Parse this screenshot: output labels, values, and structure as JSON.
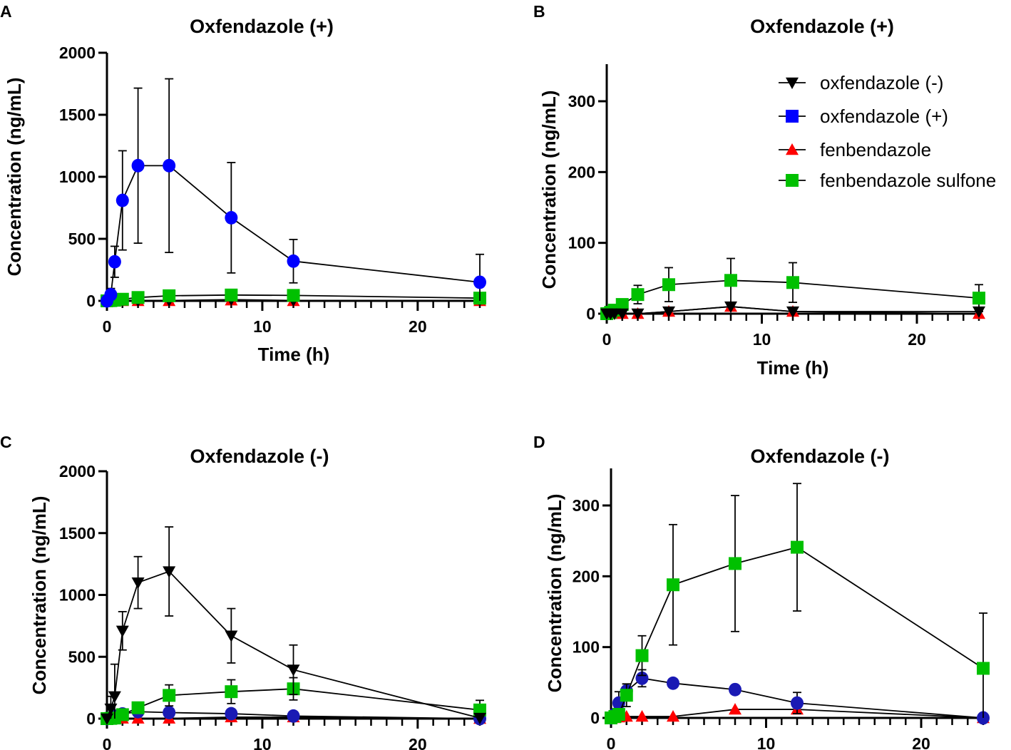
{
  "legend": [
    {
      "name": "oxfendazole (-)",
      "marker": "triangle-down",
      "color": "#000000"
    },
    {
      "name": "oxfendazole (+)",
      "marker": "square",
      "color": "#0000ff"
    },
    {
      "name": "fenbendazole",
      "marker": "triangle-up",
      "color": "#ff0000"
    },
    {
      "name": "fenbendazole sulfone",
      "marker": "square",
      "color": "#00c000"
    }
  ],
  "chart_data": [
    {
      "panel": "A",
      "type": "line",
      "title": "Oxfendazole (+)",
      "xlabel": "Time (h)",
      "ylabel": "Concentration (ng/mL)",
      "xlim": [
        0,
        24
      ],
      "ylim": [
        0,
        2000
      ],
      "xticks": [
        0,
        10,
        20
      ],
      "yticks": [
        0,
        500,
        1000,
        1500,
        2000
      ],
      "grid": false,
      "x": [
        0,
        0.25,
        0.5,
        1,
        2,
        4,
        8,
        12,
        24
      ],
      "series": [
        {
          "name": "fenbendazole",
          "marker": "triangle-up",
          "color": "#ff0000",
          "values": [
            0,
            0,
            0,
            0,
            0,
            0,
            5,
            0,
            0
          ],
          "sd": [
            0,
            0,
            0,
            0,
            0,
            0,
            0,
            0,
            0
          ]
        },
        {
          "name": "oxfendazole (-)",
          "marker": "triangle-down",
          "color": "#000000",
          "values": [
            0,
            0,
            0,
            0,
            0,
            3,
            10,
            3,
            3
          ],
          "sd": [
            0,
            0,
            0,
            0,
            0,
            0,
            0,
            0,
            0
          ]
        },
        {
          "name": "fenbendazole sulfone",
          "marker": "square",
          "color": "#00c000",
          "values": [
            0,
            2,
            5,
            13,
            27,
            41,
            47,
            44,
            22
          ],
          "sd": [
            0,
            0,
            0,
            0,
            0,
            0,
            0,
            0,
            0
          ]
        },
        {
          "name": "oxfendazole (+)",
          "marker": "circle",
          "color": "#0000ff",
          "values": [
            0,
            50,
            315,
            810,
            1090,
            1090,
            670,
            320,
            150
          ],
          "sd": [
            0,
            50,
            125,
            400,
            625,
            700,
            445,
            175,
            225
          ]
        }
      ]
    },
    {
      "panel": "B",
      "type": "line",
      "title": "Oxfendazole (+)",
      "xlabel": "Time (h)",
      "ylabel": "Concentration (ng/mL)",
      "xlim": [
        0,
        24
      ],
      "ylim": [
        0,
        350
      ],
      "xticks": [
        0,
        10,
        20
      ],
      "yticks": [
        0,
        100,
        200,
        300
      ],
      "grid": false,
      "legend_position": "top-right",
      "x": [
        0,
        0.25,
        0.5,
        1,
        2,
        4,
        8,
        12,
        24
      ],
      "series": [
        {
          "name": "fenbendazole",
          "marker": "triangle-up",
          "color": "#ff0000",
          "values": [
            0,
            0,
            0,
            0,
            0,
            3,
            10,
            3,
            0
          ],
          "sd": [
            0,
            0,
            0,
            0,
            0,
            0,
            0,
            0,
            0
          ]
        },
        {
          "name": "fenbendazole sulfone",
          "marker": "square",
          "color": "#00c000",
          "values": [
            0,
            2,
            5,
            13,
            27,
            41,
            47,
            44,
            22
          ],
          "sd": [
            0,
            0,
            0,
            3,
            13,
            24,
            31,
            28,
            19
          ]
        },
        {
          "name": "oxfendazole (-)",
          "marker": "triangle-down",
          "color": "#000000",
          "values": [
            0,
            0,
            0,
            0,
            0,
            3,
            10,
            3,
            3
          ],
          "sd": [
            0,
            0,
            0,
            0,
            0,
            0,
            0,
            0,
            0
          ]
        }
      ]
    },
    {
      "panel": "C",
      "type": "line",
      "title": "Oxfendazole (-)",
      "xlabel": "",
      "ylabel": "Concentration (ng/mL)",
      "xlim": [
        0,
        24
      ],
      "ylim": [
        0,
        2000
      ],
      "xticks": [
        0,
        10,
        20
      ],
      "yticks": [
        0,
        500,
        1000,
        1500,
        2000
      ],
      "grid": false,
      "x": [
        0,
        0.25,
        0.5,
        1,
        2,
        4,
        8,
        12,
        24
      ],
      "series": [
        {
          "name": "fenbendazole",
          "marker": "triangle-up",
          "color": "#ff0000",
          "values": [
            0,
            0,
            1,
            2,
            2,
            2,
            12,
            12,
            0
          ],
          "sd": [
            0,
            0,
            0,
            0,
            0,
            0,
            0,
            0,
            0
          ]
        },
        {
          "name": "oxfendazole (+)",
          "marker": "circle",
          "color": "#1a1ab4",
          "values": [
            0,
            5,
            21,
            38,
            56,
            49,
            40,
            21,
            0
          ],
          "sd": [
            0,
            0,
            0,
            0,
            0,
            0,
            0,
            0,
            0
          ]
        },
        {
          "name": "fenbendazole sulfone",
          "marker": "square",
          "color": "#00c000",
          "values": [
            0,
            2,
            5,
            32,
            88,
            188,
            218,
            241,
            70
          ],
          "sd": [
            0,
            0,
            0,
            16,
            28,
            85,
            96,
            90,
            78
          ]
        },
        {
          "name": "oxfendazole (-)",
          "marker": "triangle-down",
          "color": "#000000",
          "values": [
            0,
            80,
            180,
            710,
            1100,
            1190,
            670,
            395,
            5
          ],
          "sd": [
            0,
            100,
            260,
            155,
            210,
            360,
            220,
            200,
            0
          ]
        }
      ]
    },
    {
      "panel": "D",
      "type": "line",
      "title": "Oxfendazole (-)",
      "xlabel": "",
      "ylabel": "Concentration (ng/mL)",
      "xlim": [
        0,
        24
      ],
      "ylim": [
        0,
        350
      ],
      "xticks": [
        0,
        10,
        20
      ],
      "yticks": [
        0,
        100,
        200,
        300
      ],
      "grid": false,
      "x": [
        0,
        0.25,
        0.5,
        1,
        2,
        4,
        8,
        12,
        24
      ],
      "series": [
        {
          "name": "fenbendazole",
          "marker": "triangle-up",
          "color": "#ff0000",
          "values": [
            0,
            0,
            1,
            2,
            2,
            2,
            12,
            12,
            0
          ],
          "sd": [
            0,
            0,
            0,
            0,
            0,
            0,
            0,
            0,
            0
          ]
        },
        {
          "name": "oxfendazole (+)",
          "marker": "circle",
          "color": "#1a1ab4",
          "values": [
            0,
            5,
            21,
            38,
            56,
            49,
            40,
            21,
            0
          ],
          "sd": [
            0,
            0,
            16,
            10,
            12,
            0,
            0,
            15,
            0
          ]
        },
        {
          "name": "fenbendazole sulfone",
          "marker": "square",
          "color": "#00c000",
          "values": [
            0,
            2,
            5,
            32,
            88,
            188,
            218,
            241,
            70
          ],
          "sd": [
            0,
            0,
            0,
            16,
            28,
            85,
            96,
            90,
            78
          ]
        }
      ]
    }
  ]
}
